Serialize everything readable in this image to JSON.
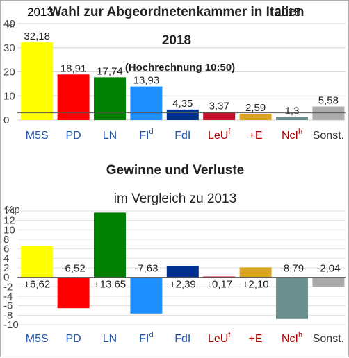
{
  "chart_data": [
    {
      "type": "bar",
      "title": "Wahl zur Abgeordnetenkammer in Italien",
      "year": "2018",
      "subtitle": "(Hochrechnung 10:50)",
      "year_labels": [
        {
          "label": "2013",
          "color": "#3366cc"
        },
        {
          "label": "2018",
          "color": "#cc0000"
        }
      ],
      "unit": "%",
      "ylim": [
        0,
        40
      ],
      "yticks": [
        0,
        10,
        20,
        30,
        40
      ],
      "reference_line": 3,
      "categories": [
        "M5S",
        "PD",
        "LN",
        "FI",
        "FdI",
        "LeU",
        "+E",
        "NcI",
        "Sonst."
      ],
      "category_superscripts": [
        "",
        "",
        "",
        "d",
        "",
        "f",
        "",
        "h",
        ""
      ],
      "category_colors": [
        "#2255aa",
        "#2255aa",
        "#2255aa",
        "#2255aa",
        "#2255aa",
        "#aa0000",
        "#aa0000",
        "#aa0000",
        "#333333"
      ],
      "values": [
        32.18,
        18.91,
        17.74,
        13.93,
        4.35,
        3.37,
        2.59,
        1.3,
        5.58
      ],
      "value_labels": [
        "32,18",
        "18,91",
        "17,74",
        "13,93",
        "4,35",
        "3,37",
        "2,59",
        "1,3",
        "5,58"
      ],
      "bar_colors": [
        "#ffff00",
        "#ff0000",
        "#008000",
        "#1e90ff",
        "#00308f",
        "#c8102e",
        "#d9a520",
        "#6b8e8e",
        "#aaaaaa"
      ]
    },
    {
      "type": "bar",
      "title": "Gewinne und Verluste",
      "subtitle": "im Vergleich zu 2013",
      "unit": "%p",
      "ylim": [
        -10,
        14
      ],
      "yticks": [
        -10,
        -8,
        -6,
        -4,
        -2,
        0,
        2,
        4,
        6,
        8,
        10,
        12,
        14
      ],
      "categories": [
        "M5S",
        "PD",
        "LN",
        "FI",
        "FdI",
        "LeU",
        "+E",
        "NcI",
        "Sonst."
      ],
      "category_superscripts": [
        "",
        "",
        "",
        "d",
        "",
        "f",
        "",
        "h",
        ""
      ],
      "category_colors": [
        "#2255aa",
        "#2255aa",
        "#2255aa",
        "#2255aa",
        "#2255aa",
        "#aa0000",
        "#aa0000",
        "#aa0000",
        "#333333"
      ],
      "values": [
        6.62,
        -6.52,
        13.65,
        -7.63,
        2.39,
        0.17,
        2.1,
        -8.79,
        -2.04
      ],
      "value_labels": [
        "+6,62",
        "-6,52",
        "+13,65",
        "-7,63",
        "+2,39",
        "+0,17",
        "+2,10",
        "-8,79",
        "-2,04"
      ],
      "bar_colors": [
        "#ffff00",
        "#ff0000",
        "#008000",
        "#1e90ff",
        "#00308f",
        "#c8102e",
        "#d9a520",
        "#6b8e8e",
        "#aaaaaa"
      ]
    }
  ]
}
